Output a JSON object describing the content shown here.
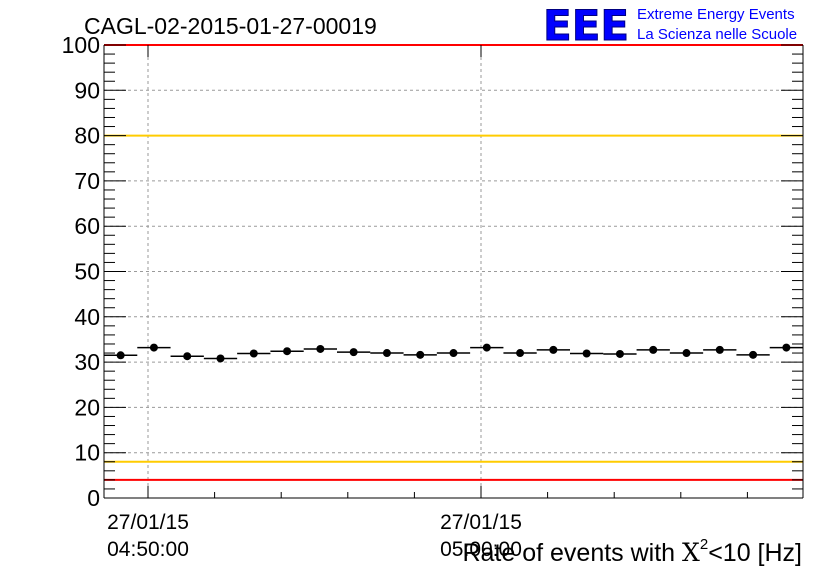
{
  "header": {
    "run_title": "CAGL-02-2015-01-27-00019",
    "logo": {
      "mark": "EEE",
      "line1": "Extreme Energy Events",
      "line2": "La Scienza nelle Scuole",
      "color": "#0000ff"
    }
  },
  "chart_data": {
    "type": "scatter",
    "title": "CAGL-02-2015-01-27-00019",
    "ylim": [
      0,
      100
    ],
    "yticks": [
      0,
      10,
      20,
      30,
      40,
      50,
      60,
      70,
      80,
      90,
      100
    ],
    "xlabel_parts": {
      "prefix": "Rate of events with ",
      "chi": "X",
      "exp": "2",
      "suffix": "<10 [Hz]"
    },
    "x_tick_labels": [
      {
        "date": "27/01/15",
        "time": "04:50:00"
      },
      {
        "date": "27/01/15",
        "time": "05:00:00"
      }
    ],
    "grid": true,
    "reference_lines": [
      {
        "y": 100,
        "color": "#ff0000"
      },
      {
        "y": 80,
        "color": "#ffcc00"
      },
      {
        "y": 8,
        "color": "#ffcc00"
      },
      {
        "y": 4,
        "color": "#ff0000"
      }
    ],
    "series": [
      {
        "color": "#000000",
        "values": [
          31.5,
          33.2,
          31.3,
          30.8,
          31.9,
          32.4,
          32.9,
          32.2,
          32.0,
          31.6,
          32.0,
          33.2,
          32.0,
          32.7,
          31.9,
          31.8,
          32.7,
          32.0,
          32.7,
          31.6,
          33.2
        ]
      }
    ]
  }
}
